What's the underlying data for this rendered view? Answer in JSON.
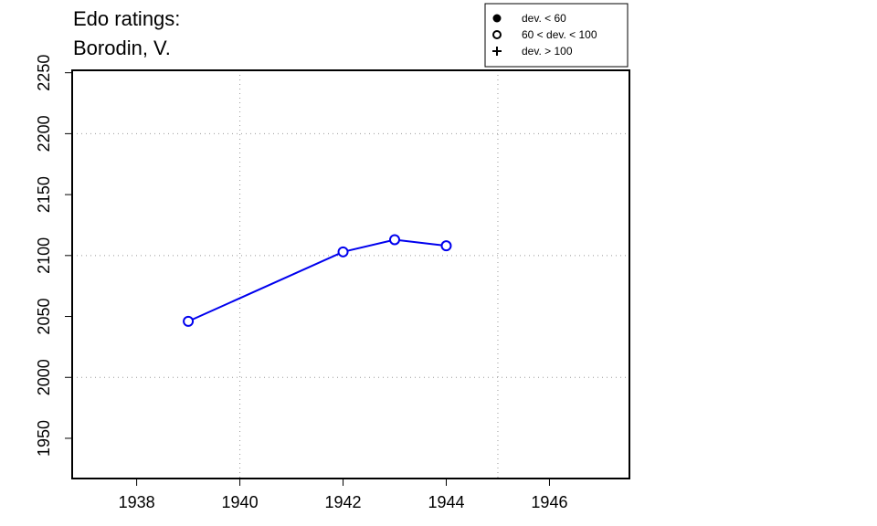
{
  "title_line1": "Edo ratings:",
  "title_line2": "Borodin, V.",
  "legend": {
    "items": [
      {
        "symbol": "filled-circle",
        "label": "dev. < 60"
      },
      {
        "symbol": "open-circle",
        "label": "60 < dev. < 100"
      },
      {
        "symbol": "plus",
        "label": "dev. > 100"
      }
    ]
  },
  "colors": {
    "series": "#0000ee",
    "axis": "#000000",
    "grid": "#999999"
  },
  "chart_data": {
    "type": "line",
    "title": "Edo ratings: Borodin, V.",
    "xlabel": "",
    "ylabel": "",
    "xlim": [
      1936.75,
      1947.55
    ],
    "ylim": [
      1917,
      2252
    ],
    "x_ticks": [
      1938,
      1940,
      1942,
      1944,
      1946
    ],
    "y_ticks": [
      1950,
      2000,
      2050,
      2100,
      2150,
      2200,
      2250
    ],
    "x_grid": [
      1940,
      1945
    ],
    "y_grid": [
      2000,
      2100,
      2200
    ],
    "grid": "dotted",
    "legend_position": "top-right",
    "series": [
      {
        "marker": "open-circle",
        "x": [
          1939,
          1942,
          1943,
          1944
        ],
        "y": [
          2046,
          2103,
          2113,
          2108
        ]
      }
    ]
  }
}
